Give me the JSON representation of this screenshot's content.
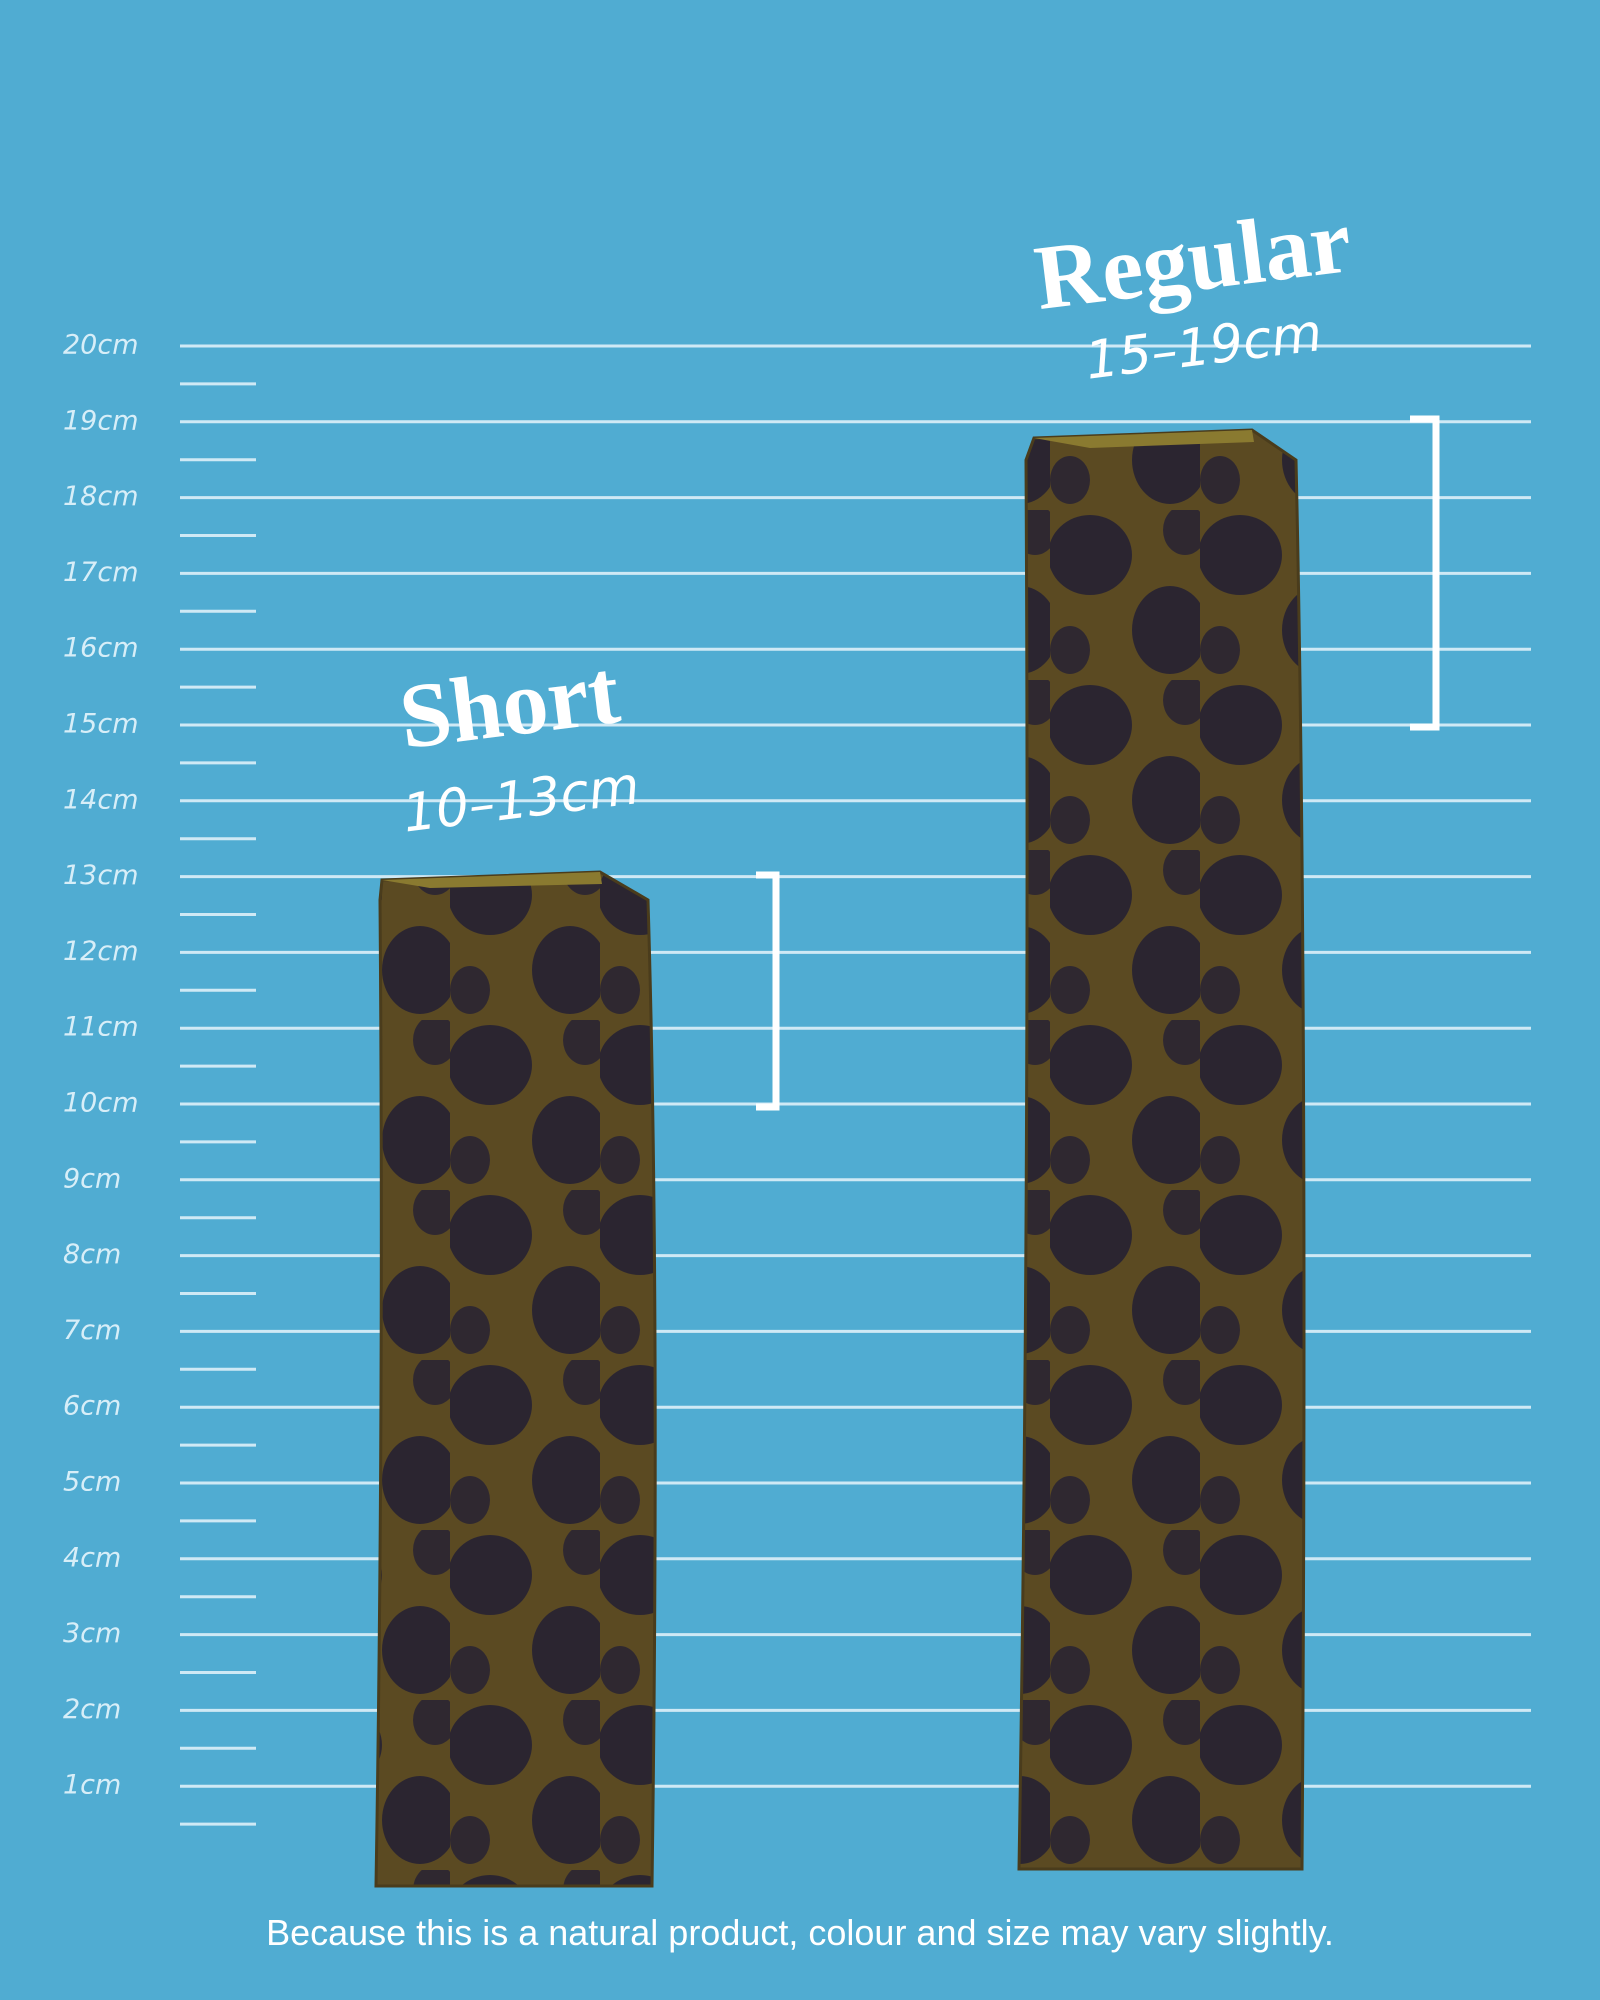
{
  "ruler": {
    "labels": [
      "20cm",
      "19cm",
      "18cm",
      "17cm",
      "16cm",
      "15cm",
      "14cm",
      "13cm",
      "12cm",
      "11cm",
      "10cm",
      "9cm",
      "8cm",
      "7cm",
      "6cm",
      "5cm",
      "4cm",
      "3cm",
      "2cm",
      "1cm"
    ]
  },
  "products": [
    {
      "name": "Short",
      "range": "10–13cm"
    },
    {
      "name": "Regular",
      "range": "15–19cm"
    }
  ],
  "note": "Because this is a natural product, colour and size may vary slightly."
}
